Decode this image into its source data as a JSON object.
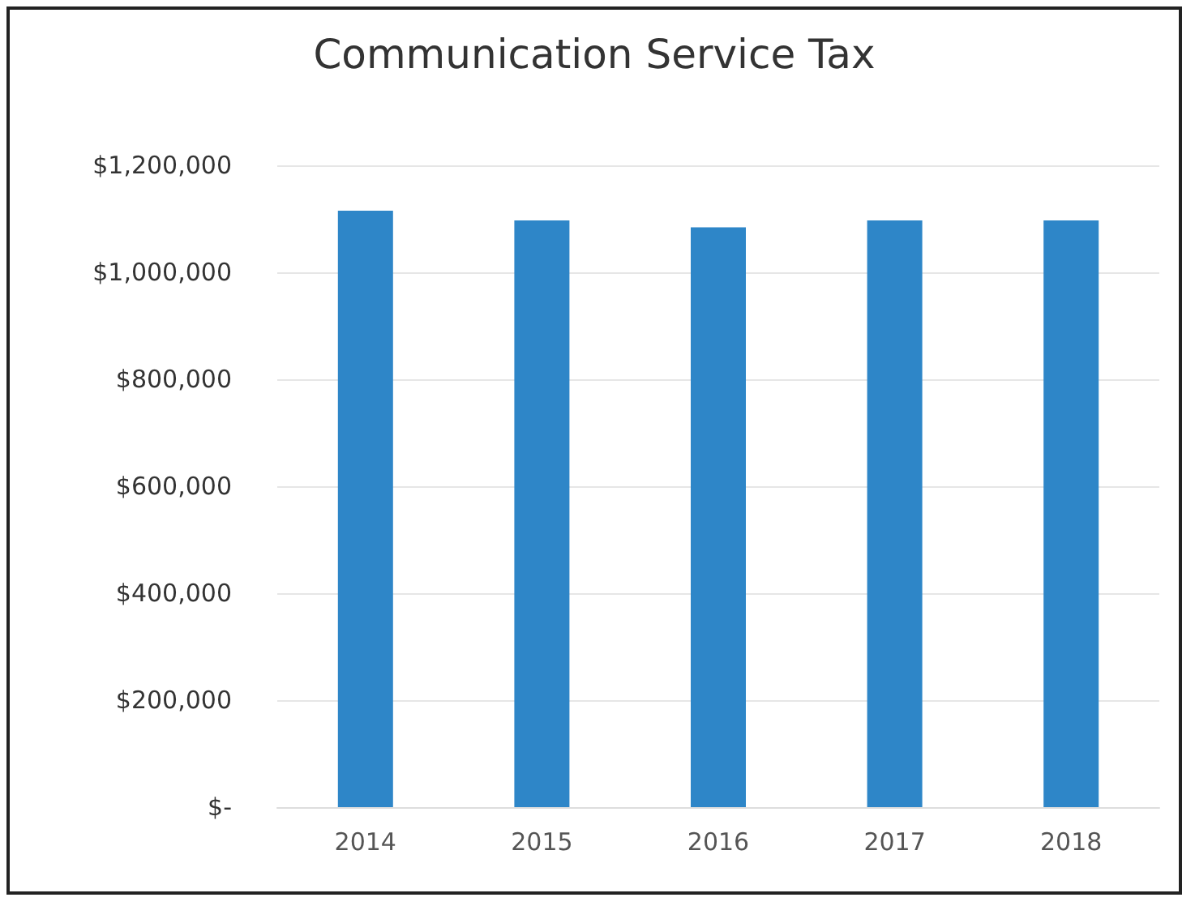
{
  "chart_data": {
    "type": "bar",
    "title": "Communication Service Tax",
    "categories": [
      "2014",
      "2015",
      "2016",
      "2017",
      "2018"
    ],
    "values": [
      1115000,
      1097000,
      1084000,
      1097000,
      1097000
    ],
    "color": "#2e86c8",
    "ylim": [
      0,
      1200000
    ],
    "yticks": [
      {
        "value": 0,
        "label": "$-"
      },
      {
        "value": 200000,
        "label": "$200,000"
      },
      {
        "value": 400000,
        "label": "$400,000"
      },
      {
        "value": 600000,
        "label": "$600,000"
      },
      {
        "value": 800000,
        "label": "$800,000"
      },
      {
        "value": 1000000,
        "label": "$1,000,000"
      },
      {
        "value": 1200000,
        "label": "$1,200,000"
      }
    ],
    "grid": "y"
  }
}
